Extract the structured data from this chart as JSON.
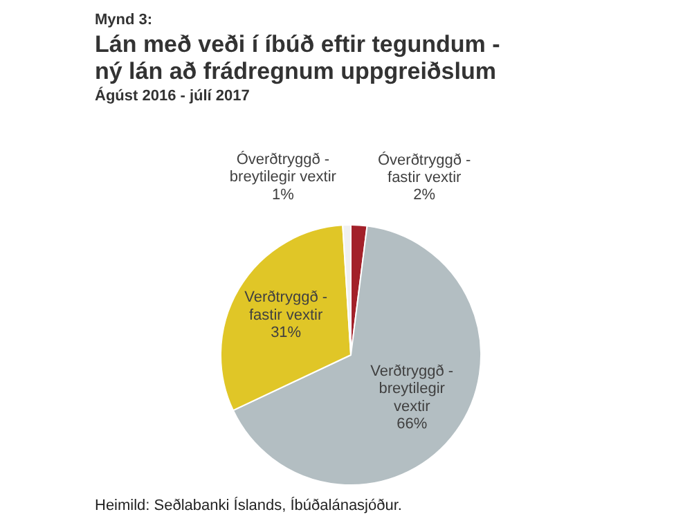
{
  "chart_data": {
    "type": "pie",
    "title": "Lán með veði í íbúð eftir tegundum -\nný lán að frádregnum uppgreiðslum",
    "subtitle": "Ágúst 2016 - júlí 2017",
    "annotations": [
      "Mynd 3:",
      "Heimild: Seðlabanki  Íslands, Íbúðalánasjóður."
    ],
    "categories": [
      "Óverðtryggð -\nfastir vextir",
      "Verðtryggð -\nbreytilegir\nvextir",
      "Verðtryggð -\nfastir vextir",
      "Óverðtryggð -\nbreytilegir vextir"
    ],
    "values": [
      2,
      66,
      31,
      1
    ],
    "value_labels": [
      "2%",
      "66%",
      "31%",
      "1%"
    ],
    "colors": [
      "#a3212a",
      "#b3bec2",
      "#e0c627",
      "#f0f0f0"
    ]
  }
}
